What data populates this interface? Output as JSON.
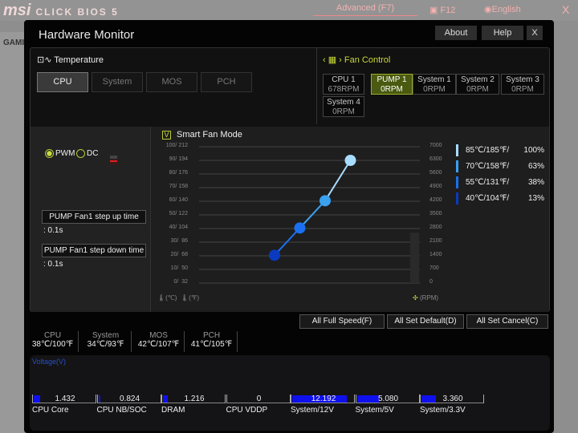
{
  "bios": {
    "brand": "msi",
    "product": "CLICK BIOS 5",
    "mode": "Advanced (F7)",
    "screenshot": "F12",
    "language": "English",
    "close": "X",
    "side_label": "GAMI"
  },
  "window": {
    "title": "Hardware Monitor",
    "about": "About",
    "help": "Help",
    "close": "X"
  },
  "temperature": {
    "label": "Temperature",
    "tabs": [
      "CPU",
      "System",
      "MOS",
      "PCH"
    ],
    "active": "CPU"
  },
  "fan_control": {
    "label": "Fan Control",
    "fans": [
      {
        "name": "CPU 1",
        "rpm": "678RPM"
      },
      {
        "name": "PUMP 1",
        "rpm": "0RPM"
      },
      {
        "name": "System 1",
        "rpm": "0RPM"
      },
      {
        "name": "System 2",
        "rpm": "0RPM"
      },
      {
        "name": "System 3",
        "rpm": "0RPM"
      },
      {
        "name": "System 4",
        "rpm": "0RPM"
      }
    ],
    "active": "PUMP 1"
  },
  "fan_settings": {
    "pwm": "PWM",
    "dc": "DC",
    "selected": "PWM",
    "step_up_label": "PUMP Fan1 step up time",
    "step_up_value": ": 0.1s",
    "step_down_label": "PUMP Fan1 step down time",
    "step_down_value": ": 0.1s"
  },
  "smart_fan": {
    "label": "Smart Fan Mode",
    "checked": true,
    "check_glyph": "V",
    "left_axis": [
      "100/ 212",
      "90/ 194",
      "80/ 176",
      "70/ 158",
      "60/ 140",
      "50/ 122",
      "40/ 104",
      "30/  86",
      "20/  68",
      "10/  50",
      "0/  32"
    ],
    "right_axis": [
      "7000",
      "6300",
      "5600",
      "4900",
      "4200",
      "3500",
      "2800",
      "2100",
      "1400",
      "700",
      "0"
    ],
    "celsius_unit": "(℃)",
    "fahrenheit_unit": "(℉)",
    "rpm_unit": "(RPM)",
    "current_rpm_level": 0.37,
    "points": [
      {
        "temp_label": "85℃/185℉/",
        "temp_c": 85,
        "percent": 100,
        "pct_label": "100%",
        "color": "#a8dcff"
      },
      {
        "temp_label": "70℃/158℉/",
        "temp_c": 70,
        "percent": 63,
        "pct_label": "63%",
        "color": "#3aa0f0"
      },
      {
        "temp_label": "55℃/131℉/",
        "temp_c": 55,
        "percent": 38,
        "pct_label": "38%",
        "color": "#1a70f0"
      },
      {
        "temp_label": "40℃/104℉/",
        "temp_c": 40,
        "percent": 13,
        "pct_label": "13%",
        "color": "#0a3ac0"
      }
    ]
  },
  "actions": {
    "full_speed": "All Full Speed(F)",
    "set_default": "All Set Default(D)",
    "set_cancel": "All Set Cancel(C)"
  },
  "temps": [
    {
      "name": "CPU",
      "value": "38℃/100℉"
    },
    {
      "name": "System",
      "value": "34℃/93℉"
    },
    {
      "name": "MOS",
      "value": "42℃/107℉"
    },
    {
      "name": "PCH",
      "value": "41℃/105℉"
    }
  ],
  "voltage": {
    "title": "Voltage(V)",
    "items": [
      {
        "name": "CPU Core",
        "value": "1.432",
        "fill": 0.1
      },
      {
        "name": "CPU NB/SOC",
        "value": "0.824",
        "fill": 0.03
      },
      {
        "name": "DRAM",
        "value": "1.216",
        "fill": 0.08
      },
      {
        "name": "CPU VDDP",
        "value": "0",
        "fill": 0
      },
      {
        "name": "System/12V",
        "value": "12.192",
        "fill": 0.87
      },
      {
        "name": "System/5V",
        "value": "5.080",
        "fill": 0.35
      },
      {
        "name": "System/3.3V",
        "value": "3.360",
        "fill": 0.23
      }
    ]
  }
}
